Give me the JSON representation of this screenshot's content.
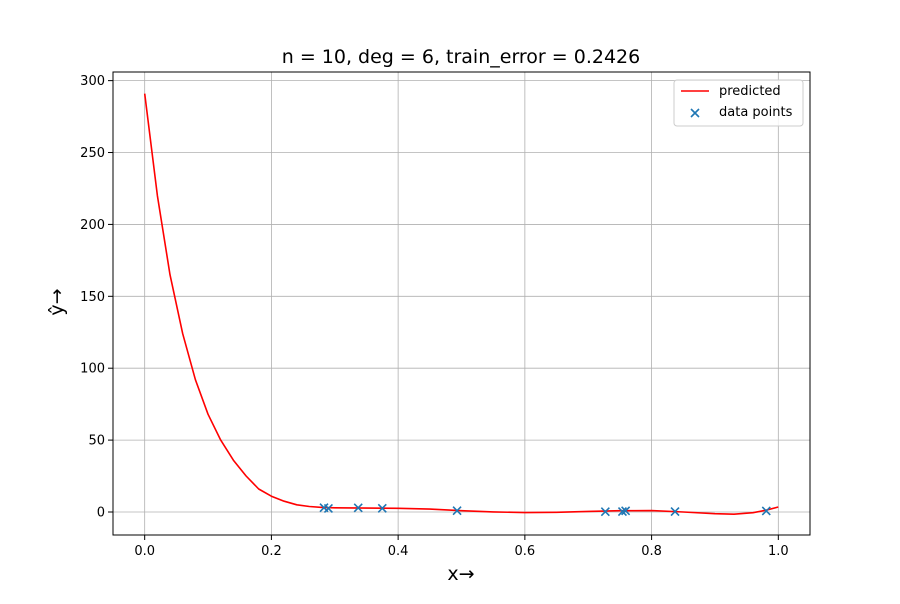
{
  "chart_data": {
    "type": "line",
    "title": "n = 10, deg = 6, train_error = 0.2426",
    "xlabel": "x→",
    "ylabel": "ŷ→",
    "xlim": [
      -0.05,
      1.05
    ],
    "ylim": [
      -16,
      306
    ],
    "xticks": [
      0.0,
      0.2,
      0.4,
      0.6,
      0.8,
      1.0
    ],
    "xtick_labels": [
      "0.0",
      "0.2",
      "0.4",
      "0.6",
      "0.8",
      "1.0"
    ],
    "yticks": [
      0,
      50,
      100,
      150,
      200,
      250,
      300
    ],
    "ytick_labels": [
      "0",
      "50",
      "100",
      "150",
      "200",
      "250",
      "300"
    ],
    "grid": true,
    "legend_position": "top-right",
    "series": [
      {
        "name": "predicted",
        "kind": "line",
        "color": "#ff0000",
        "x": [
          0.0,
          0.02,
          0.04,
          0.06,
          0.08,
          0.1,
          0.12,
          0.14,
          0.16,
          0.18,
          0.2,
          0.22,
          0.24,
          0.26,
          0.28,
          0.3,
          0.35,
          0.4,
          0.45,
          0.5,
          0.55,
          0.6,
          0.65,
          0.7,
          0.75,
          0.8,
          0.85,
          0.9,
          0.93,
          0.96,
          0.98,
          1.0
        ],
        "y": [
          291,
          220,
          165,
          124,
          92,
          68,
          50,
          36,
          25,
          16,
          11,
          7.5,
          5.0,
          3.8,
          3.2,
          2.9,
          2.7,
          2.6,
          2.0,
          0.9,
          0.1,
          -0.4,
          -0.2,
          0.4,
          0.9,
          1.0,
          0.0,
          -1.2,
          -1.5,
          -0.5,
          1.2,
          3.5
        ]
      },
      {
        "name": "data points",
        "kind": "scatter",
        "marker": "x",
        "color": "#1f77b4",
        "x": [
          0.283,
          0.29,
          0.337,
          0.375,
          0.493,
          0.727,
          0.754,
          0.759,
          0.837,
          0.981
        ],
        "y": [
          3.0,
          2.5,
          2.9,
          2.6,
          0.9,
          0.2,
          0.3,
          0.8,
          0.3,
          0.7
        ]
      }
    ]
  }
}
